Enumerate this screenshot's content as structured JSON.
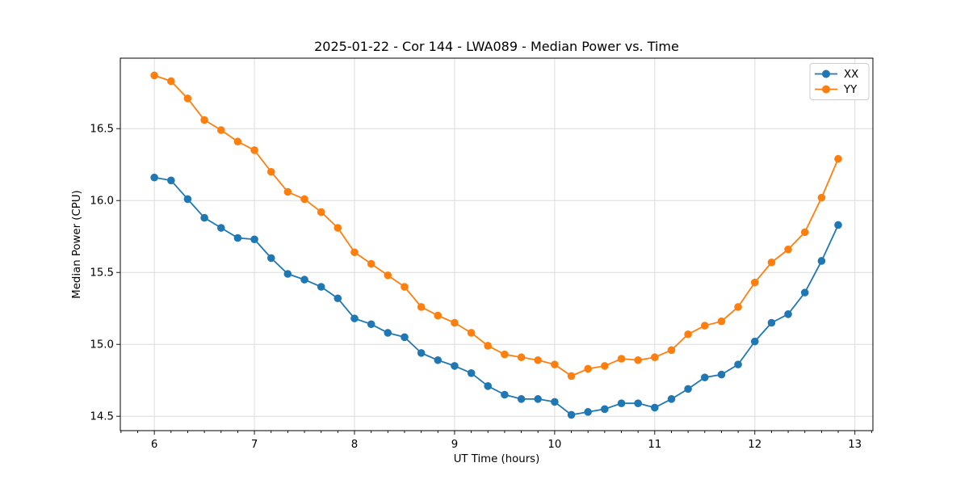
{
  "figure": {
    "background": "#ffffff"
  },
  "chart_data": {
    "type": "line",
    "title": "2025-01-22 - Cor 144 - LWA089 - Median Power vs. Time",
    "xlabel": "UT Time (hours)",
    "ylabel": "Median Power (CPU)",
    "xlim": [
      5.66,
      13.18
    ],
    "ylim": [
      14.4,
      16.99
    ],
    "xticks": [
      6,
      7,
      8,
      9,
      10,
      11,
      12,
      13
    ],
    "xtick_labels": [
      "6",
      "7",
      "8",
      "9",
      "10",
      "11",
      "12",
      "13"
    ],
    "yticks": [
      14.5,
      15.0,
      15.5,
      16.0,
      16.5
    ],
    "ytick_labels": [
      "14.5",
      "15.0",
      "15.5",
      "16.0",
      "16.5"
    ],
    "x_minor_tick_step_hours": 0.1667,
    "grid": true,
    "legend": {
      "position": "upper right",
      "frame": true
    },
    "x": [
      6.0,
      6.167,
      6.333,
      6.5,
      6.667,
      6.833,
      7.0,
      7.167,
      7.333,
      7.5,
      7.667,
      7.833,
      8.0,
      8.167,
      8.333,
      8.5,
      8.667,
      8.833,
      9.0,
      9.167,
      9.333,
      9.5,
      9.667,
      9.833,
      10.0,
      10.167,
      10.333,
      10.5,
      10.667,
      10.833,
      11.0,
      11.167,
      11.333,
      11.5,
      11.667,
      11.833,
      12.0,
      12.167,
      12.333,
      12.5,
      12.667,
      12.833
    ],
    "series": [
      {
        "name": "XX",
        "color": "#1f77b4",
        "values": [
          16.16,
          16.14,
          16.01,
          15.88,
          15.81,
          15.74,
          15.73,
          15.6,
          15.49,
          15.45,
          15.4,
          15.32,
          15.18,
          15.14,
          15.08,
          15.05,
          14.94,
          14.89,
          14.85,
          14.8,
          14.71,
          14.65,
          14.62,
          14.62,
          14.6,
          14.51,
          14.53,
          14.55,
          14.59,
          14.59,
          14.56,
          14.62,
          14.69,
          14.77,
          14.79,
          14.86,
          15.02,
          15.15,
          15.21,
          15.36,
          15.58,
          15.83
        ]
      },
      {
        "name": "YY",
        "color": "#ff7f0e",
        "values": [
          16.87,
          16.83,
          16.71,
          16.56,
          16.49,
          16.41,
          16.35,
          16.2,
          16.06,
          16.01,
          15.92,
          15.81,
          15.64,
          15.56,
          15.48,
          15.4,
          15.26,
          15.2,
          15.15,
          15.08,
          14.99,
          14.93,
          14.91,
          14.89,
          14.86,
          14.78,
          14.83,
          14.85,
          14.9,
          14.89,
          14.91,
          14.96,
          15.07,
          15.13,
          15.16,
          15.26,
          15.43,
          15.57,
          15.66,
          15.78,
          16.02,
          16.29
        ]
      }
    ]
  }
}
